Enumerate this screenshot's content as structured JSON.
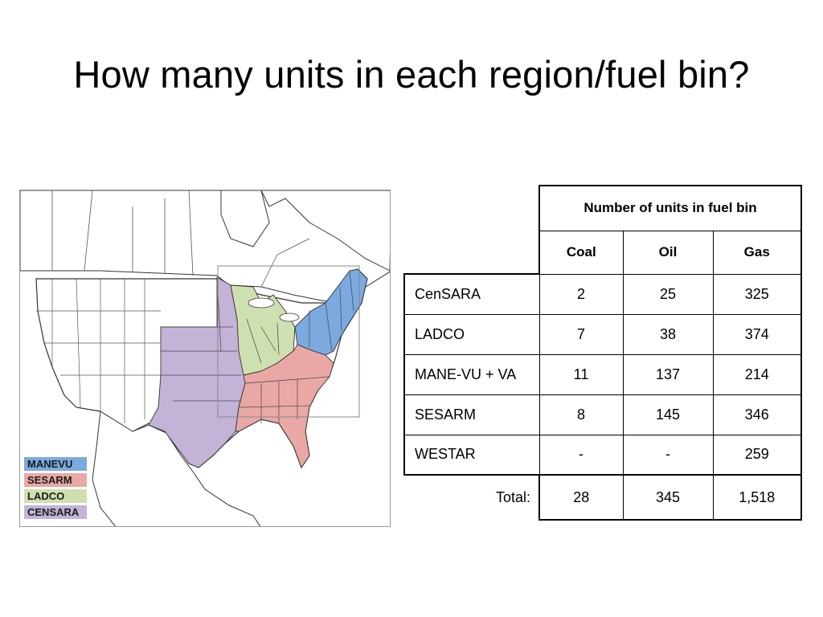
{
  "slide": {
    "title": "How many units in each region/fuel bin?"
  },
  "map": {
    "regions": [
      {
        "name": "MANEVU",
        "color": "#7aaadf"
      },
      {
        "name": "SESARM",
        "color": "#e9a8a6"
      },
      {
        "name": "LADCO",
        "color": "#cfe0b0"
      },
      {
        "name": "CENSARA",
        "color": "#c3b3d6"
      }
    ]
  },
  "table": {
    "group_header": "Number of units in fuel bin",
    "columns": [
      "Coal",
      "Oil",
      "Gas"
    ],
    "rows": [
      {
        "region": "CenSARA",
        "coal": "2",
        "oil": "25",
        "gas": "325"
      },
      {
        "region": "LADCO",
        "coal": "7",
        "oil": "38",
        "gas": "374"
      },
      {
        "region": "MANE-VU + VA",
        "coal": "11",
        "oil": "137",
        "gas": "214"
      },
      {
        "region": "SESARM",
        "coal": "8",
        "oil": "145",
        "gas": "346"
      },
      {
        "region": "WESTAR",
        "coal": "-",
        "oil": "-",
        "gas": "259"
      }
    ],
    "total": {
      "label": "Total:",
      "coal": "28",
      "oil": "345",
      "gas": "1,518"
    }
  }
}
